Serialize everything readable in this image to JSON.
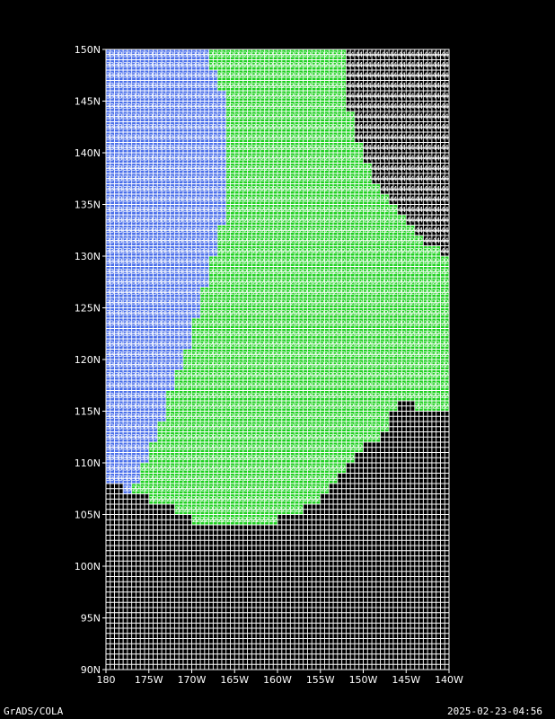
{
  "chart_data": {
    "type": "heatmap",
    "title": "",
    "xlabel": "",
    "ylabel": "",
    "xlim": [
      180,
      220
    ],
    "ylim": [
      90,
      150
    ],
    "x_ticks": [
      180,
      185,
      190,
      195,
      200,
      205,
      210,
      215,
      220
    ],
    "x_tick_labels": [
      "180",
      "175W",
      "170W",
      "165W",
      "160W",
      "155W",
      "150W",
      "145W",
      "140W"
    ],
    "y_ticks": [
      90,
      95,
      100,
      105,
      110,
      115,
      120,
      125,
      130,
      135,
      140,
      145,
      150
    ],
    "y_tick_labels": [
      "90N",
      "95N",
      "100N",
      "105N",
      "110N",
      "115N",
      "120N",
      "125N",
      "130N",
      "135N",
      "140N",
      "145N",
      "150N"
    ],
    "grid": true,
    "categories": [
      {
        "value": "2",
        "color": "#1ed020"
      },
      {
        "value": "3",
        "color": "#4a6fea"
      },
      {
        "value": "4",
        "color": "#000000"
      }
    ],
    "region_3_east_edge_lon": [
      {
        "lat": 150,
        "lon": 191.5
      },
      {
        "lat": 146,
        "lon": 193.5
      },
      {
        "lat": 140,
        "lon": 194
      },
      {
        "lat": 135,
        "lon": 194
      },
      {
        "lat": 131,
        "lon": 193
      },
      {
        "lat": 126,
        "lon": 191
      },
      {
        "lat": 122,
        "lon": 190
      },
      {
        "lat": 118,
        "lon": 188
      },
      {
        "lat": 113,
        "lon": 186
      },
      {
        "lat": 110,
        "lon": 184.5
      },
      {
        "lat": 108,
        "lon": 183.5
      }
    ],
    "region_4_west_edge_lon": [
      {
        "lat": 150,
        "lon": 208
      },
      {
        "lat": 146,
        "lon": 208
      },
      {
        "lat": 142,
        "lon": 209
      },
      {
        "lat": 138,
        "lon": 211
      },
      {
        "lat": 134,
        "lon": 214.5
      },
      {
        "lat": 131,
        "lon": 218
      },
      {
        "lat": 129,
        "lon": 220
      }
    ],
    "data_south_boundary_lat": [
      {
        "lon": 180,
        "lat": 108
      },
      {
        "lon": 184,
        "lat": 107
      },
      {
        "lon": 187,
        "lat": 106
      },
      {
        "lon": 189,
        "lat": 105
      },
      {
        "lon": 192,
        "lat": 104
      },
      {
        "lon": 195,
        "lat": 103.5
      },
      {
        "lon": 198,
        "lat": 104
      },
      {
        "lon": 201,
        "lat": 105
      },
      {
        "lon": 204,
        "lat": 106
      },
      {
        "lon": 206,
        "lat": 107.5
      },
      {
        "lon": 208,
        "lat": 109.5
      },
      {
        "lon": 211,
        "lat": 112
      },
      {
        "lon": 213,
        "lat": 114
      },
      {
        "lon": 215,
        "lat": 116.5
      },
      {
        "lon": 216,
        "lat": 115
      },
      {
        "lon": 220,
        "lat": 114.5
      }
    ]
  },
  "footer": {
    "left": "GrADS/COLA",
    "right": "2025-02-23-04:56"
  },
  "colors": {
    "background": "#000000",
    "grid": "#ffffff"
  }
}
